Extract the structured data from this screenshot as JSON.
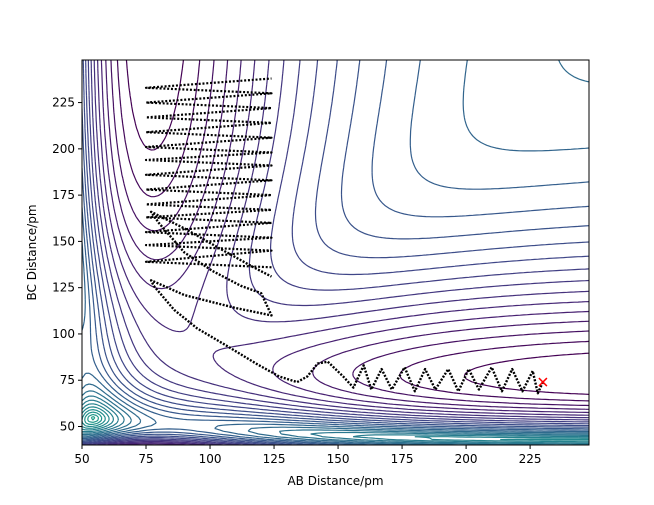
{
  "chart_data": {
    "type": "contour",
    "xlabel": "AB Distance/pm",
    "ylabel": "BC Distance/pm",
    "xlim": [
      50,
      248
    ],
    "ylim": [
      40,
      248
    ],
    "x_ticks": [
      50,
      75,
      100,
      125,
      150,
      175,
      200,
      225
    ],
    "y_ticks": [
      50,
      75,
      100,
      125,
      150,
      175,
      200,
      225
    ],
    "x_tick_labels": [
      "50",
      "75",
      "100",
      "125",
      "150",
      "175",
      "200",
      "225"
    ],
    "y_tick_labels": [
      "50",
      "75",
      "100",
      "125",
      "150",
      "175",
      "200",
      "225"
    ],
    "colormap": "viridis",
    "contour_levels": 44,
    "potential_minimum": {
      "r": 74
    },
    "trajectory": {
      "color": "#000000",
      "start": [
        230,
        74
      ],
      "path_points": [
        [
          230,
          74
        ],
        [
          228,
          68
        ],
        [
          226,
          80
        ],
        [
          222,
          69
        ],
        [
          218,
          81
        ],
        [
          214,
          69
        ],
        [
          210,
          82
        ],
        [
          205,
          70
        ],
        [
          201,
          81
        ],
        [
          197,
          69
        ],
        [
          193,
          81
        ],
        [
          188,
          70
        ],
        [
          184,
          81
        ],
        [
          180,
          69
        ],
        [
          176,
          82
        ],
        [
          171,
          70
        ],
        [
          167,
          81
        ],
        [
          163,
          70
        ],
        [
          160,
          83
        ],
        [
          156,
          71
        ],
        [
          152,
          77
        ],
        [
          146,
          85
        ],
        [
          142,
          84
        ],
        [
          138,
          77
        ],
        [
          134,
          74
        ],
        [
          127,
          77
        ],
        [
          118,
          84
        ],
        [
          106,
          94
        ],
        [
          95,
          103
        ],
        [
          86,
          113
        ],
        [
          78,
          126
        ],
        [
          77,
          129
        ],
        [
          90,
          121
        ],
        [
          110,
          114
        ],
        [
          124,
          110
        ],
        [
          120,
          122
        ],
        [
          112,
          126
        ],
        [
          101,
          134
        ],
        [
          90,
          144
        ],
        [
          80,
          160
        ],
        [
          77,
          166
        ],
        [
          90,
          157
        ],
        [
          104,
          146
        ],
        [
          117,
          136
        ],
        [
          124,
          131
        ]
      ],
      "oscillation_y_levels": [
        136,
        145,
        152,
        160,
        167,
        175,
        183,
        191,
        198,
        206,
        214,
        222,
        230,
        238
      ],
      "oscillation_x_range": [
        75,
        124
      ]
    },
    "end_marker": {
      "x": 230,
      "y": 74,
      "color": "#ff0000",
      "symbol": "x"
    }
  }
}
